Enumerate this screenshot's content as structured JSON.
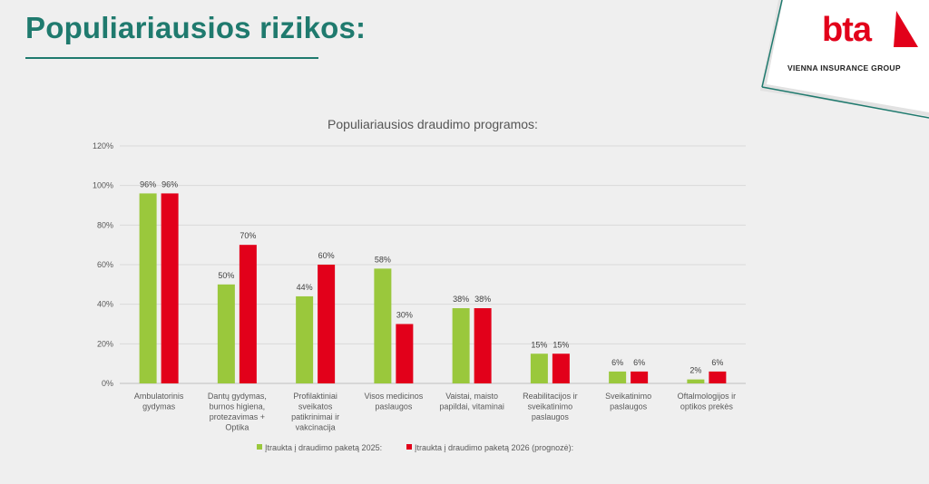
{
  "slide": {
    "title": "Populiariausios rizikos:",
    "brand": "bta",
    "brand_tagline": "VIENNA INSURANCE GROUP"
  },
  "colors": {
    "title": "#1f7a6e",
    "series_2025": "#9ac83c",
    "series_2026": "#e2001a"
  },
  "chart_data": {
    "type": "bar",
    "title": "Populiariausios draudimo programos:",
    "ylim": [
      0,
      120
    ],
    "yticks": [
      "0%",
      "20%",
      "40%",
      "60%",
      "80%",
      "100%",
      "120%"
    ],
    "categories": [
      [
        "Ambulatorinis",
        "gydymas"
      ],
      [
        "Dantų gydymas,",
        "burnos higiena,",
        "protezavimas +",
        "Optika"
      ],
      [
        "Profilaktiniai",
        "sveikatos",
        "patikrinimai ir",
        "vakcinacija"
      ],
      [
        "Visos medicinos",
        "paslaugos"
      ],
      [
        "Vaistai, maisto",
        "papildai, vitaminai"
      ],
      [
        "Reabilitacijos ir",
        "sveikatinimo",
        "paslaugos"
      ],
      [
        "Sveikatinimo",
        "paslaugos"
      ],
      [
        "Oftalmologijos ir",
        "optikos prekės"
      ]
    ],
    "series": [
      {
        "name": "Įtraukta į draudimo paketą 2025:",
        "values": [
          96,
          50,
          44,
          58,
          38,
          15,
          6,
          2
        ],
        "labels": [
          "96%",
          "50%",
          "44%",
          "58%",
          "38%",
          "15%",
          "6%",
          "2%"
        ]
      },
      {
        "name": "Įtraukta į draudimo paketą 2026 (prognozė):",
        "values": [
          96,
          70,
          60,
          30,
          38,
          15,
          6,
          6
        ],
        "labels": [
          "96%",
          "70%",
          "60%",
          "30%",
          "38%",
          "15%",
          "6%",
          "6%"
        ]
      }
    ],
    "grid": true,
    "legend": "bottom"
  }
}
